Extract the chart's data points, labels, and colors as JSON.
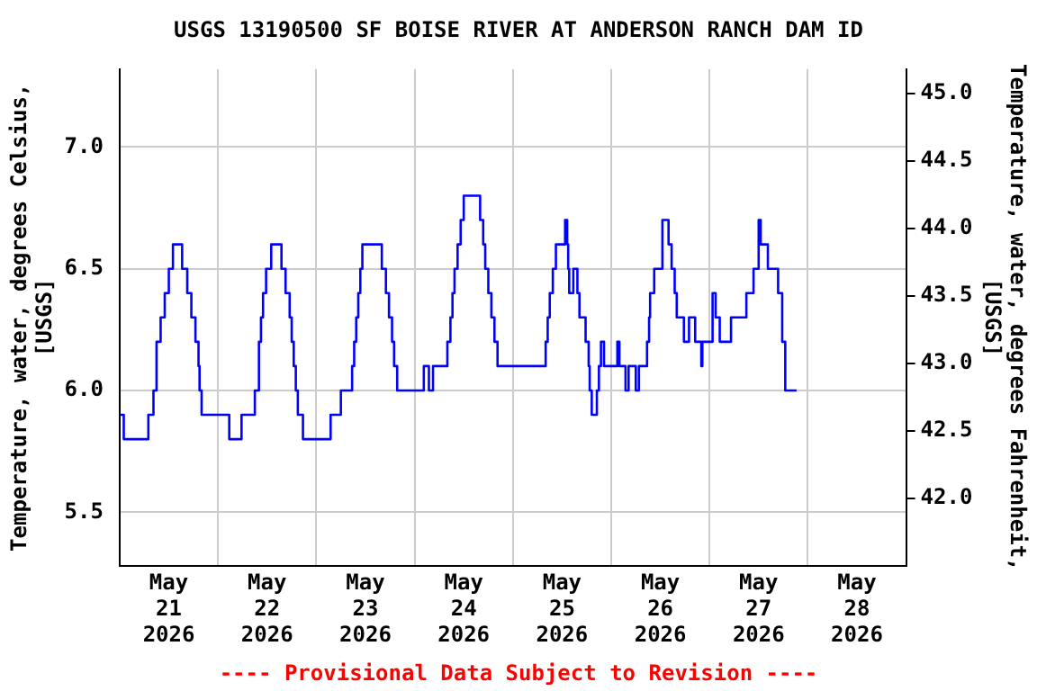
{
  "chart_data": {
    "type": "step",
    "title": "USGS 13190500 SF BOISE RIVER AT ANDERSON RANCH DAM ID",
    "ylabel": "Temperature, water, degrees Celsius, [USGS]",
    "y2label": "Temperature, water, degrees Fahrenheit, [USGS]",
    "annotations": [
      "---- Provisional Data Subject to Revision ----"
    ],
    "xlim": [
      "2026-05-21T00:00",
      "2026-05-29T00:00"
    ],
    "xticks": [
      {
        "value": "2026-05-21T12:00",
        "label": "May 21 2026"
      },
      {
        "value": "2026-05-22T00:00",
        "label": null
      },
      {
        "value": "2026-05-22T12:00",
        "label": "May 22 2026"
      },
      {
        "value": "2026-05-23T00:00",
        "label": null
      },
      {
        "value": "2026-05-23T12:00",
        "label": "May 23 2026"
      },
      {
        "value": "2026-05-24T00:00",
        "label": null
      },
      {
        "value": "2026-05-24T12:00",
        "label": "May 24 2026"
      },
      {
        "value": "2026-05-25T00:00",
        "label": null
      },
      {
        "value": "2026-05-25T12:00",
        "label": "May 25 2026"
      },
      {
        "value": "2026-05-26T00:00",
        "label": null
      },
      {
        "value": "2026-05-26T12:00",
        "label": "May 26 2026"
      },
      {
        "value": "2026-05-27T00:00",
        "label": null
      },
      {
        "value": "2026-05-27T12:00",
        "label": "May 27 2026"
      },
      {
        "value": "2026-05-28T00:00",
        "label": null
      },
      {
        "value": "2026-05-28T12:00",
        "label": "May 28 2026"
      }
    ],
    "ylim": [
      5.28,
      7.32
    ],
    "yticks": [
      {
        "value": 5.5,
        "label": "5.5"
      },
      {
        "value": 6,
        "label": "6.0"
      },
      {
        "value": 6.5,
        "label": "6.5"
      },
      {
        "value": 7,
        "label": "7.0"
      }
    ],
    "y2lim": [
      41.5,
      45.18
    ],
    "y2ticks": [
      {
        "value": 42,
        "label": "42.0"
      },
      42.5,
      {
        "value": 43,
        "label": "43.0"
      },
      43.5,
      {
        "value": 44,
        "label": "44.0"
      },
      44.5,
      {
        "value": 45,
        "label": "45.0"
      }
    ],
    "grid": true,
    "legend": false,
    "marker": "none",
    "line_style": "solid",
    "series": [
      {
        "color": "#0000ff",
        "x": [
          "2026-05-21T00:00",
          "2026-05-21T01:00",
          "2026-05-21T07:00",
          "2026-05-21T08:15",
          "2026-05-21T09:00",
          "2026-05-21T10:00",
          "2026-05-21T11:00",
          "2026-05-21T12:00",
          "2026-05-21T13:00",
          "2026-05-21T15:15",
          "2026-05-21T16:30",
          "2026-05-21T17:30",
          "2026-05-21T18:30",
          "2026-05-21T19:15",
          "2026-05-21T19:30",
          "2026-05-21T20:00",
          "2026-05-22T02:45",
          "2026-05-22T05:45",
          "2026-05-22T09:00",
          "2026-05-22T10:00",
          "2026-05-22T10:30",
          "2026-05-22T11:00",
          "2026-05-22T11:45",
          "2026-05-22T13:00",
          "2026-05-22T15:30",
          "2026-05-22T16:30",
          "2026-05-22T17:30",
          "2026-05-22T18:00",
          "2026-05-22T18:30",
          "2026-05-22T19:00",
          "2026-05-22T19:30",
          "2026-05-22T20:45",
          "2026-05-23T03:30",
          "2026-05-23T06:00",
          "2026-05-23T08:45",
          "2026-05-23T09:15",
          "2026-05-23T09:45",
          "2026-05-23T10:15",
          "2026-05-23T10:45",
          "2026-05-23T11:15",
          "2026-05-23T16:00",
          "2026-05-23T17:00",
          "2026-05-23T17:45",
          "2026-05-23T18:30",
          "2026-05-23T19:00",
          "2026-05-23T19:45",
          "2026-05-24T02:15",
          "2026-05-24T03:30",
          "2026-05-24T04:30",
          "2026-05-24T08:00",
          "2026-05-24T08:45",
          "2026-05-24T09:15",
          "2026-05-24T09:45",
          "2026-05-24T10:30",
          "2026-05-24T11:15",
          "2026-05-24T12:00",
          "2026-05-24T16:00",
          "2026-05-24T16:45",
          "2026-05-24T17:15",
          "2026-05-24T18:00",
          "2026-05-24T18:45",
          "2026-05-24T19:30",
          "2026-05-24T20:15",
          "2026-05-25T08:00",
          "2026-05-25T08:30",
          "2026-05-25T09:00",
          "2026-05-25T09:45",
          "2026-05-25T10:30",
          "2026-05-25T12:45",
          "2026-05-25T13:15",
          "2026-05-25T13:30",
          "2026-05-25T13:45",
          "2026-05-25T14:45",
          "2026-05-25T15:45",
          "2026-05-25T16:15",
          "2026-05-25T17:45",
          "2026-05-25T18:30",
          "2026-05-25T18:45",
          "2026-05-25T19:15",
          "2026-05-25T20:30",
          "2026-05-25T21:00",
          "2026-05-25T21:30",
          "2026-05-25T22:15",
          "2026-05-26T01:30",
          "2026-05-26T02:00",
          "2026-05-26T03:30",
          "2026-05-26T04:15",
          "2026-05-26T06:00",
          "2026-05-26T06:45",
          "2026-05-26T08:45",
          "2026-05-26T09:15",
          "2026-05-26T09:30",
          "2026-05-26T10:30",
          "2026-05-26T12:30",
          "2026-05-26T14:00",
          "2026-05-26T14:45",
          "2026-05-26T15:30",
          "2026-05-26T16:00",
          "2026-05-26T17:45",
          "2026-05-26T19:00",
          "2026-05-26T20:30",
          "2026-05-26T22:00",
          "2026-05-26T22:15",
          "2026-05-27T00:45",
          "2026-05-27T01:30",
          "2026-05-27T02:30",
          "2026-05-27T05:15",
          "2026-05-27T09:00",
          "2026-05-27T10:45",
          "2026-05-27T12:00",
          "2026-05-27T12:30",
          "2026-05-27T14:15",
          "2026-05-27T16:45",
          "2026-05-27T17:45",
          "2026-05-27T18:30",
          "2026-05-27T21:15"
        ],
        "values": [
          5.9,
          5.8,
          5.9,
          6.0,
          6.2,
          6.3,
          6.4,
          6.5,
          6.6,
          6.5,
          6.4,
          6.3,
          6.2,
          6.1,
          6.0,
          5.9,
          5.8,
          5.9,
          6.0,
          6.2,
          6.3,
          6.4,
          6.5,
          6.6,
          6.5,
          6.4,
          6.3,
          6.2,
          6.1,
          6.0,
          5.9,
          5.8,
          5.9,
          6.0,
          6.1,
          6.2,
          6.3,
          6.4,
          6.5,
          6.6,
          6.5,
          6.4,
          6.3,
          6.2,
          6.1,
          6.0,
          6.1,
          6.0,
          6.1,
          6.2,
          6.3,
          6.4,
          6.5,
          6.6,
          6.7,
          6.8,
          6.7,
          6.6,
          6.5,
          6.4,
          6.3,
          6.2,
          6.1,
          6.2,
          6.3,
          6.4,
          6.5,
          6.6,
          6.7,
          6.6,
          6.5,
          6.4,
          6.5,
          6.4,
          6.3,
          6.2,
          6.1,
          6.0,
          5.9,
          6.0,
          6.1,
          6.2,
          6.1,
          6.2,
          6.1,
          6.0,
          6.1,
          6.0,
          6.1,
          6.2,
          6.3,
          6.4,
          6.5,
          6.7,
          6.6,
          6.5,
          6.4,
          6.3,
          6.2,
          6.3,
          6.2,
          6.1,
          6.2,
          6.4,
          6.3,
          6.2,
          6.3,
          6.4,
          6.5,
          6.7,
          6.6,
          6.5,
          6.4,
          6.2,
          6.0,
          6.0
        ]
      }
    ]
  }
}
